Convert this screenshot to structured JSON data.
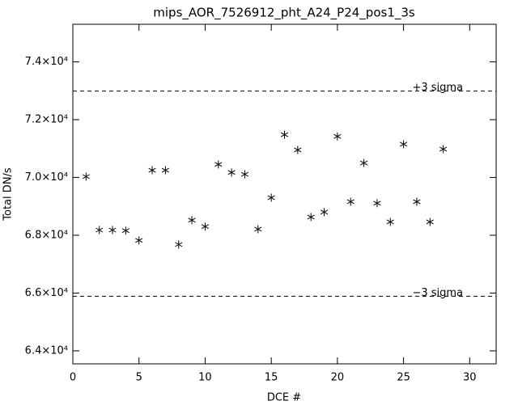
{
  "chart_data": {
    "type": "scatter",
    "title": "mips_AOR_7526912_pht_A24_P24_pos1_3s",
    "x_label": "DCE #",
    "y_label": "Total DN/s",
    "x": [
      1,
      2,
      3,
      4,
      5,
      6,
      7,
      8,
      9,
      10,
      11,
      12,
      13,
      14,
      15,
      16,
      17,
      18,
      19,
      20,
      21,
      22,
      23,
      24,
      25,
      26,
      27,
      28
    ],
    "values": [
      70030,
      68180,
      68180,
      68160,
      67820,
      70250,
      70250,
      67680,
      68520,
      68300,
      70450,
      70170,
      70110,
      68210,
      69300,
      71480,
      70950,
      68630,
      68800,
      71420,
      69160,
      70500,
      69110,
      68460,
      71150,
      69160,
      68460,
      70980
    ],
    "color": "#000000",
    "xlim": [
      0,
      32
    ],
    "xticks": [
      0,
      5,
      10,
      15,
      20,
      25,
      30
    ],
    "ylim": [
      63550,
      75300
    ],
    "yticks": [
      {
        "value": 64000,
        "label": "6.4×10⁴"
      },
      {
        "value": 66000,
        "label": "6.6×10⁴"
      },
      {
        "value": 68000,
        "label": "6.8×10⁴"
      },
      {
        "value": 70000,
        "label": "7.0×10⁴"
      },
      {
        "value": 72000,
        "label": "7.2×10⁴"
      },
      {
        "value": 74000,
        "label": "7.4×10⁴"
      }
    ],
    "reference_lines": [
      {
        "value": 72990,
        "label": "+3 sigma"
      },
      {
        "value": 65890,
        "label": "−3 sigma"
      }
    ]
  }
}
